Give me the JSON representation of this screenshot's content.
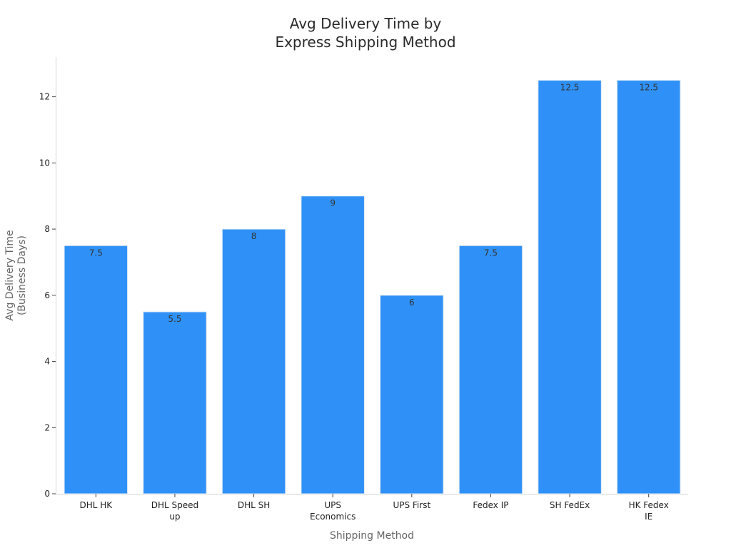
{
  "chart_data": {
    "type": "bar",
    "title": [
      "Avg Delivery Time by",
      "Express Shipping Method"
    ],
    "xlabel": "Shipping Method",
    "ylabel": [
      "Avg Delivery Time",
      "(Business Days)"
    ],
    "categories": [
      [
        "DHL HK"
      ],
      [
        "DHL Speed",
        "up"
      ],
      [
        "DHL SH"
      ],
      [
        "UPS",
        "Economics"
      ],
      [
        "UPS First"
      ],
      [
        "Fedex IP"
      ],
      [
        "SH FedEx"
      ],
      [
        "HK Fedex",
        "IE"
      ]
    ],
    "values": [
      7.5,
      5.5,
      8,
      9,
      6,
      7.5,
      12.5,
      12.5
    ],
    "data_labels": [
      "7.5",
      "5.5",
      "8",
      "9",
      "6",
      "7.5",
      "12.5",
      "12.5"
    ],
    "ylim": [
      0,
      13.2
    ],
    "yticks": [
      0,
      2,
      4,
      6,
      8,
      10,
      12
    ],
    "bar_color": "#2f91f7",
    "bar_edge_color": "#dfe9f3",
    "grid": false,
    "legend": "none"
  }
}
